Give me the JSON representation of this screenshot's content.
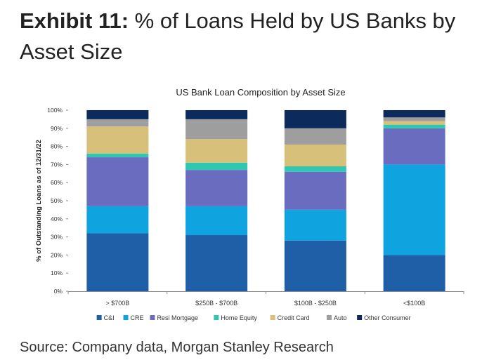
{
  "exhibit": {
    "label": "Exhibit 11:",
    "title": "% of Loans Held by US Banks by Asset Size"
  },
  "source": "Source: Company data, Morgan Stanley Research",
  "chart_data": {
    "type": "bar",
    "stacked": true,
    "title": "US Bank Loan Composition by Asset Size",
    "xlabel": "",
    "ylabel": "% of Outstanding Loans as of 12/31/22",
    "ylim": [
      0,
      100
    ],
    "yticks": [
      0,
      10,
      20,
      30,
      40,
      50,
      60,
      70,
      80,
      90,
      100
    ],
    "ytick_format": "{v}%",
    "grid": false,
    "legend_position": "bottom",
    "categories": [
      "> $700B",
      "$250B - $700B",
      "$100B - $250B",
      "<$100B"
    ],
    "series": [
      {
        "name": "C&I",
        "color": "#1f5fa8",
        "values": [
          32,
          31,
          28,
          20
        ]
      },
      {
        "name": "CRE",
        "color": "#0fa3e0",
        "values": [
          15,
          16,
          17,
          50
        ]
      },
      {
        "name": "Resi Mortgage",
        "color": "#6a6cc0",
        "values": [
          27,
          20,
          21,
          20
        ]
      },
      {
        "name": "Home Equity",
        "color": "#2ec8b0",
        "values": [
          2,
          4,
          3,
          2
        ]
      },
      {
        "name": "Credit Card",
        "color": "#d7c07a",
        "values": [
          15,
          13,
          12,
          2
        ]
      },
      {
        "name": "Auto",
        "color": "#9e9e9e",
        "values": [
          4,
          11,
          9,
          2
        ]
      },
      {
        "name": "Other Consumer",
        "color": "#0c2a5c",
        "values": [
          5,
          5,
          10,
          4
        ]
      }
    ]
  }
}
